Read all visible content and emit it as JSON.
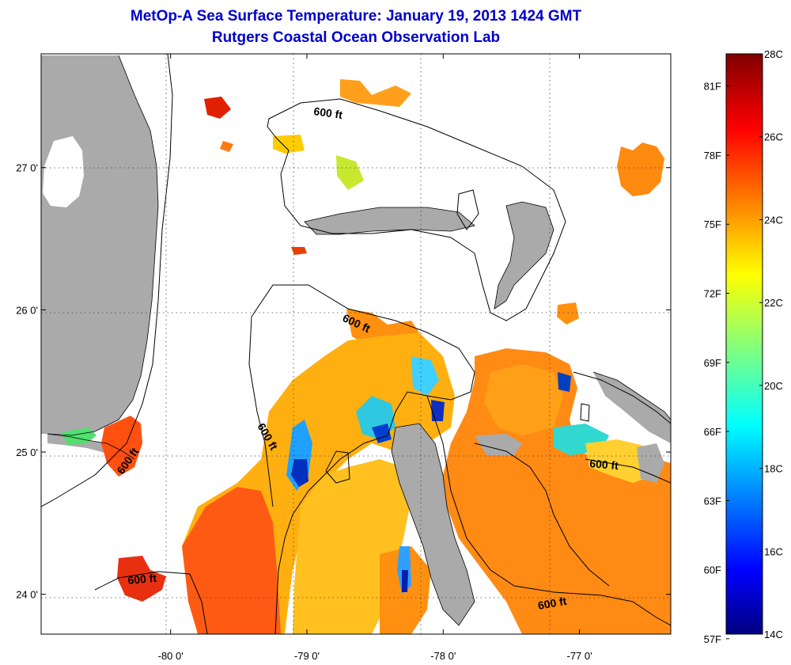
{
  "title": "MetOp-A Sea Surface Temperature:  January 19, 2013 1424 GMT",
  "subtitle": "Rutgers Coastal Ocean Observation Lab",
  "colors": {
    "land": "#aaaaaa",
    "frame": "#000000",
    "title": "#0000cc"
  },
  "map": {
    "lon_range": [
      -80.95,
      -76.33
    ],
    "lat_range": [
      23.72,
      27.8
    ],
    "lon_ticks": [
      {
        "value": -80,
        "label": "-80 0'"
      },
      {
        "value": -79,
        "label": "-79 0'"
      },
      {
        "value": -78,
        "label": "-78 0'"
      },
      {
        "value": -77,
        "label": "-77 0'"
      }
    ],
    "lat_ticks": [
      {
        "value": 27,
        "label": "27 0'"
      },
      {
        "value": 26,
        "label": "26 0'"
      },
      {
        "value": 25,
        "label": "25 0'"
      },
      {
        "value": 24,
        "label": "24 0'"
      }
    ],
    "contour_label": "600 ft",
    "grid": true
  },
  "colorbar": {
    "min_c": 14,
    "max_c": 28,
    "celsius_labels": [
      {
        "value": 28,
        "label": "28C"
      },
      {
        "value": 26,
        "label": "26C"
      },
      {
        "value": 24,
        "label": "24C"
      },
      {
        "value": 22,
        "label": "22C"
      },
      {
        "value": 20,
        "label": "20C"
      },
      {
        "value": 18,
        "label": "18C"
      },
      {
        "value": 16,
        "label": "16C"
      },
      {
        "value": 14,
        "label": "14C"
      }
    ],
    "fahrenheit_labels": [
      {
        "value": 81,
        "label": "81F"
      },
      {
        "value": 78,
        "label": "78F"
      },
      {
        "value": 75,
        "label": "75F"
      },
      {
        "value": 72,
        "label": "72F"
      },
      {
        "value": 69,
        "label": "69F"
      },
      {
        "value": 66,
        "label": "66F"
      },
      {
        "value": 63,
        "label": "63F"
      },
      {
        "value": 60,
        "label": "60F"
      },
      {
        "value": 57,
        "label": "57F"
      }
    ]
  }
}
